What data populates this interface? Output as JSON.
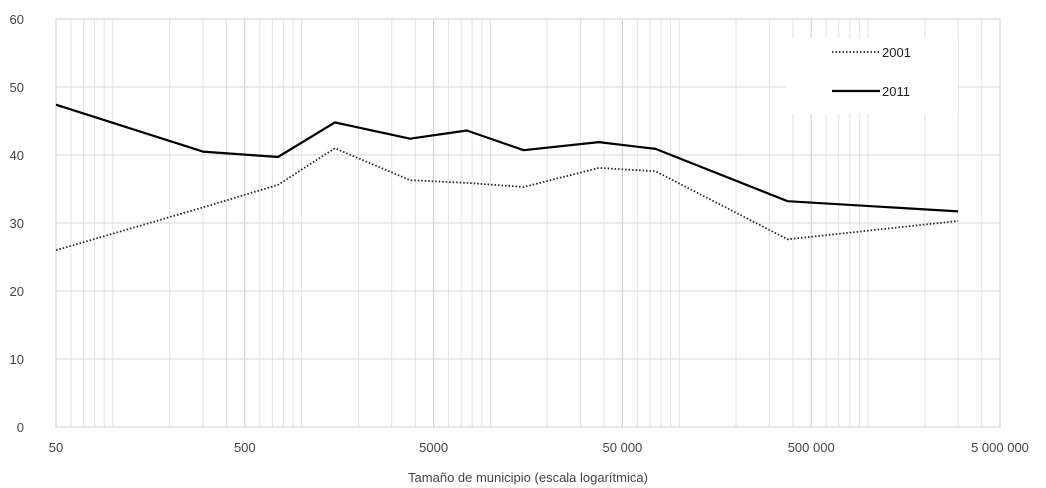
{
  "chart_data": {
    "type": "line",
    "xlabel": "Tamaño de municipio (escala logarítmica)",
    "ylabel": "",
    "title": "",
    "x_scale": "log",
    "xlim": [
      50,
      5000000
    ],
    "ylim": [
      0,
      60
    ],
    "x_ticks": [
      {
        "value": 50,
        "label": "50"
      },
      {
        "value": 500,
        "label": "500"
      },
      {
        "value": 5000,
        "label": "5000"
      },
      {
        "value": 50000,
        "label": "50 000"
      },
      {
        "value": 500000,
        "label": "500 000"
      },
      {
        "value": 5000000,
        "label": "5 000 000"
      }
    ],
    "y_ticks": [
      0,
      10,
      20,
      30,
      40,
      50,
      60
    ],
    "grid": true,
    "legend_position": "top-right",
    "series": [
      {
        "name": "2001",
        "line_style": "dotted",
        "color": "#222222",
        "points": [
          [
            50,
            26.0
          ],
          [
            300,
            32.3
          ],
          [
            750,
            35.6
          ],
          [
            1500,
            41.0
          ],
          [
            3750,
            36.3
          ],
          [
            7500,
            35.9
          ],
          [
            15000,
            35.3
          ],
          [
            37500,
            38.1
          ],
          [
            75000,
            37.6
          ],
          [
            375000,
            27.6
          ],
          [
            3000000,
            30.3
          ]
        ]
      },
      {
        "name": "2011",
        "line_style": "solid",
        "color": "#000000",
        "points": [
          [
            50,
            47.4
          ],
          [
            300,
            40.5
          ],
          [
            750,
            39.7
          ],
          [
            1500,
            44.8
          ],
          [
            3750,
            42.4
          ],
          [
            7500,
            43.6
          ],
          [
            15000,
            40.7
          ],
          [
            37500,
            41.9
          ],
          [
            75000,
            40.9
          ],
          [
            375000,
            33.2
          ],
          [
            3000000,
            31.7
          ]
        ]
      }
    ]
  }
}
